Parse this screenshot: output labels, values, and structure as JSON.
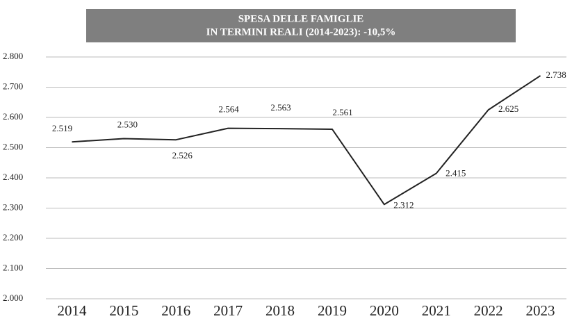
{
  "chart_data": {
    "type": "line",
    "title": [
      "SPESA DELLE FAMIGLIE",
      "IN TERMINI REALI (2014-2023): -10,5%"
    ],
    "categories": [
      "2014",
      "2015",
      "2016",
      "2017",
      "2018",
      "2019",
      "2020",
      "2021",
      "2022",
      "2023"
    ],
    "values": [
      2519,
      2530,
      2526,
      2564,
      2563,
      2561,
      2312,
      2415,
      2625,
      2738
    ],
    "value_labels": [
      "2.519",
      "2.530",
      "2.526",
      "2.564",
      "2.563",
      "2.561",
      "2.312",
      "2.415",
      "2.625",
      "2.738"
    ],
    "color": "#222222",
    "ylim": [
      2000,
      2800
    ],
    "yticks": [
      {
        "value": 2000,
        "label": "2.000"
      },
      {
        "value": 2100,
        "label": "2.100"
      },
      {
        "value": 2200,
        "label": "2.200"
      },
      {
        "value": 2300,
        "label": "2.300"
      },
      {
        "value": 2400,
        "label": "2.400"
      },
      {
        "value": 2500,
        "label": "2.500"
      },
      {
        "value": 2600,
        "label": "2.600"
      },
      {
        "value": 2700,
        "label": "2.700"
      },
      {
        "value": 2800,
        "label": "2.800"
      }
    ],
    "grid": true
  }
}
